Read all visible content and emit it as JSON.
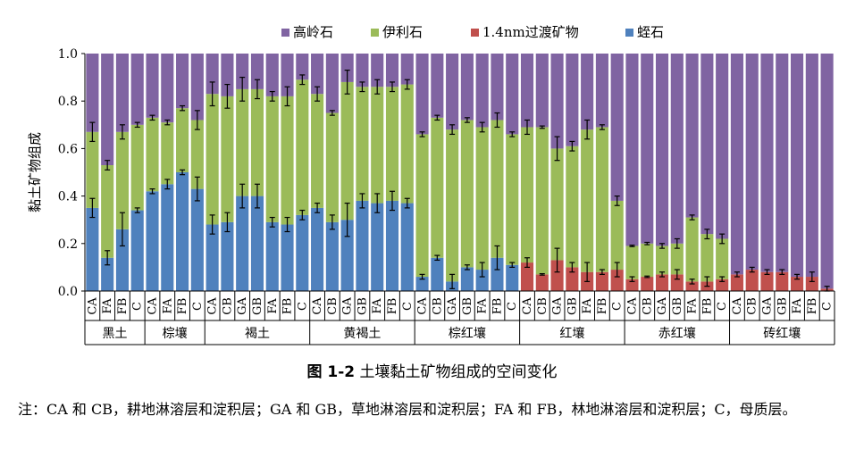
{
  "chart_data": {
    "type": "bar",
    "stacked": true,
    "ylabel": "黏土矿物组成",
    "ylim": [
      0,
      1.0
    ],
    "yticks": [
      "0.0",
      "0.2",
      "0.4",
      "0.6",
      "0.8",
      "1.0"
    ],
    "grid": false,
    "legend_position": "top",
    "groups": [
      {
        "label": "黑土",
        "categories": [
          "CA",
          "FA",
          "FB",
          "C"
        ]
      },
      {
        "label": "棕壤",
        "categories": [
          "CA",
          "FA",
          "FB",
          "C"
        ]
      },
      {
        "label": "褐土",
        "categories": [
          "CA",
          "CB",
          "GA",
          "GB",
          "FA",
          "FB",
          "C"
        ]
      },
      {
        "label": "黄褐土",
        "categories": [
          "CA",
          "CB",
          "GA",
          "GB",
          "FA",
          "FB",
          "C"
        ]
      },
      {
        "label": "棕红壤",
        "categories": [
          "CA",
          "CB",
          "GA",
          "GB",
          "FA",
          "FB",
          "C"
        ]
      },
      {
        "label": "红壤",
        "categories": [
          "CA",
          "CB",
          "GA",
          "GB",
          "FA",
          "FB",
          "C"
        ]
      },
      {
        "label": "赤红壤",
        "categories": [
          "CA",
          "CB",
          "GA",
          "GB",
          "FA",
          "FB",
          "C"
        ]
      },
      {
        "label": "砖红壤",
        "categories": [
          "CA",
          "CB",
          "GA",
          "GB",
          "FA",
          "FB",
          "C"
        ]
      }
    ],
    "series": [
      {
        "name": "蛭石",
        "color": "#4f81bd",
        "values": [
          0.35,
          0.14,
          0.26,
          0.34,
          0.42,
          0.45,
          0.5,
          0.43,
          0.28,
          0.29,
          0.4,
          0.4,
          0.29,
          0.28,
          0.32,
          0.35,
          0.29,
          0.3,
          0.38,
          0.37,
          0.38,
          0.37,
          0.06,
          0.14,
          0.04,
          0.1,
          0.09,
          0.14,
          0.11,
          0,
          0,
          0,
          0,
          0,
          0,
          0,
          0,
          0,
          0,
          0,
          0,
          0,
          0,
          0,
          0,
          0,
          0,
          0,
          0,
          0
        ]
      },
      {
        "name": "1.4nm过渡矿物",
        "color": "#c0504d",
        "values": [
          0,
          0,
          0,
          0,
          0,
          0,
          0,
          0,
          0,
          0,
          0,
          0,
          0,
          0,
          0,
          0,
          0,
          0,
          0,
          0,
          0,
          0,
          0,
          0,
          0,
          0,
          0,
          0,
          0,
          0.12,
          0.07,
          0.13,
          0.1,
          0.08,
          0.08,
          0.09,
          0.05,
          0.06,
          0.07,
          0.07,
          0.04,
          0.04,
          0.05,
          0.07,
          0.09,
          0.08,
          0.08,
          0.06,
          0.06,
          0.01
        ]
      },
      {
        "name": "伊利石",
        "color": "#9bbb59",
        "values": [
          0.32,
          0.39,
          0.41,
          0.36,
          0.31,
          0.26,
          0.27,
          0.29,
          0.55,
          0.53,
          0.45,
          0.45,
          0.53,
          0.54,
          0.57,
          0.48,
          0.46,
          0.58,
          0.48,
          0.49,
          0.48,
          0.5,
          0.6,
          0.59,
          0.64,
          0.62,
          0.6,
          0.58,
          0.55,
          0.57,
          0.62,
          0.47,
          0.51,
          0.6,
          0.61,
          0.29,
          0.14,
          0.14,
          0.12,
          0.13,
          0.27,
          0.2,
          0.17,
          0,
          0,
          0,
          0,
          0,
          0,
          0
        ]
      },
      {
        "name": "高岭石",
        "color": "#8064a2",
        "values": [
          0.33,
          0.47,
          0.33,
          0.3,
          0.27,
          0.29,
          0.23,
          0.28,
          0.17,
          0.18,
          0.15,
          0.15,
          0.18,
          0.18,
          0.11,
          0.17,
          0.25,
          0.12,
          0.14,
          0.14,
          0.14,
          0.13,
          0.34,
          0.27,
          0.32,
          0.28,
          0.31,
          0.28,
          0.34,
          0.31,
          0.31,
          0.4,
          0.39,
          0.32,
          0.31,
          0.62,
          0.81,
          0.8,
          0.81,
          0.8,
          0.69,
          0.76,
          0.78,
          0.93,
          0.91,
          0.92,
          0.92,
          0.94,
          0.94,
          0.99
        ]
      }
    ],
    "error_bars": {
      "blue_top": [
        0.04,
        0.03,
        0.07,
        0.01,
        0.01,
        0.02,
        0.01,
        0.05,
        0.04,
        0.04,
        0.05,
        0.05,
        0.02,
        0.03,
        0.02,
        0.02,
        0.03,
        0.07,
        0.03,
        0.04,
        0.04,
        0.02,
        0.01,
        0.01,
        0.03,
        0.01,
        0.03,
        0.05,
        0.01,
        0,
        0,
        0,
        0,
        0,
        0,
        0,
        0,
        0,
        0,
        0,
        0,
        0,
        0,
        0,
        0,
        0,
        0,
        0,
        0,
        0
      ],
      "red_top": [
        0,
        0,
        0,
        0,
        0,
        0,
        0,
        0,
        0,
        0,
        0,
        0,
        0,
        0,
        0,
        0,
        0,
        0,
        0,
        0,
        0,
        0,
        0,
        0,
        0,
        0,
        0,
        0,
        0,
        0.02,
        0.003,
        0.05,
        0.02,
        0.04,
        0.01,
        0.03,
        0.01,
        0.003,
        0.01,
        0.02,
        0.01,
        0.02,
        0.01,
        0.01,
        0.01,
        0.01,
        0.01,
        0.01,
        0.02,
        0.01
      ],
      "green_top": [
        0.04,
        0.02,
        0.03,
        0.01,
        0.01,
        0.01,
        0.01,
        0.04,
        0.05,
        0.05,
        0.05,
        0.04,
        0.02,
        0.04,
        0.02,
        0.03,
        0.01,
        0.05,
        0.02,
        0.03,
        0.02,
        0.02,
        0.01,
        0.01,
        0.02,
        0.01,
        0.02,
        0.03,
        0.01,
        0.03,
        0.005,
        0.05,
        0.02,
        0.04,
        0.01,
        0.02,
        0.003,
        0.005,
        0.01,
        0.02,
        0.01,
        0.02,
        0.02,
        0,
        0,
        0,
        0,
        0,
        0,
        0
      ]
    }
  },
  "legend": [
    {
      "label": "高岭石",
      "color": "#8064a2"
    },
    {
      "label": "伊利石",
      "color": "#9bbb59"
    },
    {
      "label": "1.4nm过渡矿物",
      "color": "#c0504d"
    },
    {
      "label": "蛭石",
      "color": "#4f81bd"
    }
  ],
  "caption": {
    "fig_label": "图 1-2",
    "text": " 土壤黏土矿物组成的空间变化"
  },
  "note": "注：CA 和 CB，耕地淋溶层和淀积层；GA 和 GB，草地淋溶层和淀积层；FA 和 FB，林地淋溶层和淀积层；C，母质层。"
}
